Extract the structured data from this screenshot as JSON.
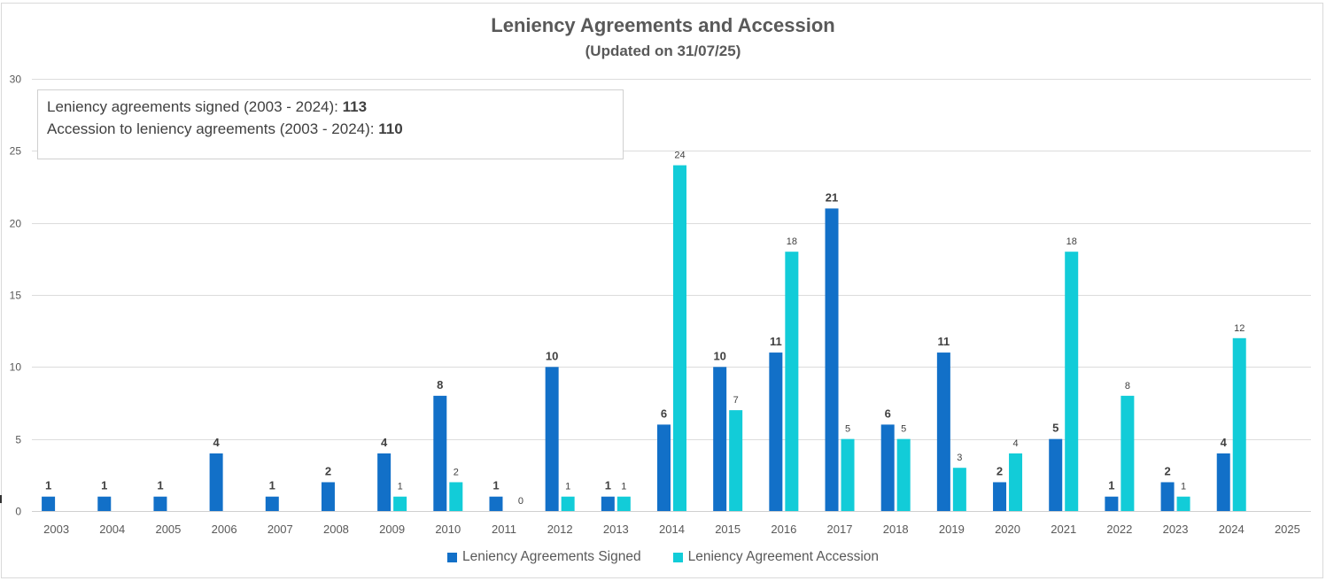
{
  "chart_data": {
    "type": "bar",
    "title": "Leniency Agreements and Accession",
    "subtitle": "(Updated on 31/07/25)",
    "xlabel": "",
    "ylabel": "",
    "ylim": [
      0,
      30
    ],
    "yticks": [
      0,
      5,
      10,
      15,
      20,
      25,
      30
    ],
    "grid": true,
    "legend_position": "bottom",
    "categories": [
      "2003",
      "2004",
      "2005",
      "2006",
      "2007",
      "2008",
      "2009",
      "2010",
      "2011",
      "2012",
      "2013",
      "2014",
      "2015",
      "2016",
      "2017",
      "2018",
      "2019",
      "2020",
      "2021",
      "2022",
      "2023",
      "2024",
      "2025"
    ],
    "series": [
      {
        "name": "Leniency Agreements Signed",
        "color": "#1270C8",
        "values": [
          1,
          1,
          1,
          4,
          1,
          2,
          4,
          8,
          1,
          10,
          1,
          6,
          10,
          11,
          21,
          6,
          11,
          2,
          5,
          1,
          2,
          4,
          null
        ],
        "label_style": "bold"
      },
      {
        "name": "Leniency Agreement Accession",
        "color": "#12CCD8",
        "values": [
          null,
          null,
          null,
          null,
          null,
          null,
          1,
          2,
          0,
          1,
          1,
          24,
          7,
          18,
          5,
          5,
          3,
          4,
          18,
          8,
          1,
          12,
          null
        ],
        "label_style": "normal"
      }
    ],
    "annotations": [
      {
        "text": "Leniency agreements signed (2003 - 2024): ",
        "value": "113"
      },
      {
        "text": "Accession to leniency agreements (2003 - 2024): ",
        "value": "110"
      }
    ]
  }
}
